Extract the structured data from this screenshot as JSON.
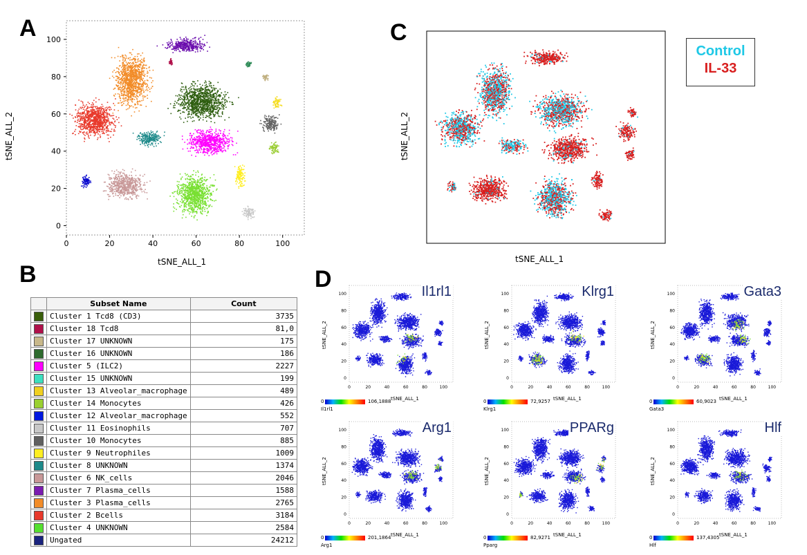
{
  "panels": {
    "a": "A",
    "b": "B",
    "c": "C",
    "d": "D"
  },
  "colors": {
    "control": "#1ec8e6",
    "il33": "#d81e1e"
  },
  "chart_data": [
    {
      "type": "scatter",
      "panel": "A",
      "xlabel": "tSNE_ALL_1",
      "ylabel": "tSNE_ALL_2",
      "xlim": [
        0,
        110
      ],
      "ylim": [
        -5,
        110
      ],
      "xticks": [
        "0",
        "20",
        "40",
        "60",
        "80",
        "100"
      ],
      "yticks": [
        "0",
        "20",
        "40",
        "60",
        "80",
        "100"
      ],
      "clusters": [
        {
          "color": "#6a0dad",
          "cx": 55,
          "cy": 97,
          "rx": 12,
          "ry": 5
        },
        {
          "color": "#f28c28",
          "cx": 30,
          "cy": 78,
          "rx": 10,
          "ry": 18
        },
        {
          "color": "#e8392b",
          "cx": 13,
          "cy": 57,
          "rx": 12,
          "ry": 12
        },
        {
          "color": "#2e5e10",
          "cx": 62,
          "cy": 67,
          "rx": 15,
          "ry": 12
        },
        {
          "color": "#ff00ff",
          "cx": 66,
          "cy": 45,
          "rx": 13,
          "ry": 9
        },
        {
          "color": "#1e8a8a",
          "cx": 38,
          "cy": 47,
          "rx": 8,
          "ry": 5
        },
        {
          "color": "#c89898",
          "cx": 27,
          "cy": 22,
          "rx": 11,
          "ry": 9
        },
        {
          "color": "#79e032",
          "cx": 59,
          "cy": 17,
          "rx": 11,
          "ry": 14
        },
        {
          "color": "#0000cc",
          "cx": 9,
          "cy": 24,
          "rx": 3,
          "ry": 4
        },
        {
          "color": "#ffee22",
          "cx": 80,
          "cy": 27,
          "rx": 3,
          "ry": 7
        },
        {
          "color": "#c8c8c8",
          "cx": 84,
          "cy": 7,
          "rx": 4,
          "ry": 4
        },
        {
          "color": "#606060",
          "cx": 94,
          "cy": 55,
          "rx": 5,
          "ry": 6
        },
        {
          "color": "#9acd32",
          "cx": 96,
          "cy": 42,
          "rx": 3,
          "ry": 4
        },
        {
          "color": "#f5dd22",
          "cx": 97,
          "cy": 66,
          "rx": 3,
          "ry": 4
        },
        {
          "color": "#2e8b57",
          "cx": 84,
          "cy": 87,
          "rx": 2,
          "ry": 2
        },
        {
          "color": "#c0b080",
          "cx": 92,
          "cy": 80,
          "rx": 2,
          "ry": 2
        },
        {
          "color": "#b0104a",
          "cx": 48,
          "cy": 88,
          "rx": 1,
          "ry": 2
        }
      ]
    },
    {
      "type": "scatter",
      "panel": "C",
      "xlabel": "tSNE_ALL_1",
      "ylabel": "tSNE_ALL_2",
      "series": [
        {
          "name": "Control",
          "color": "#1ec8e6"
        },
        {
          "name": "IL-33",
          "color": "#d81e1e"
        }
      ]
    }
  ],
  "table": {
    "headers": [
      "Subset Name",
      "Count"
    ],
    "rows": [
      {
        "color": "#3a5f0b",
        "name": "Cluster 1 Tcd8 (CD3)",
        "count": "3735"
      },
      {
        "color": "#b0104a",
        "name": "Cluster 18 Tcd8",
        "count": "81,0"
      },
      {
        "color": "#c8b88a",
        "name": "Cluster 17 UNKNOWN",
        "count": "175"
      },
      {
        "color": "#2e6b2e",
        "name": "Cluster 16 UNKNOWN",
        "count": "186"
      },
      {
        "color": "#ff00ff",
        "name": "Cluster 5        (ILC2)",
        "count": "2227"
      },
      {
        "color": "#3ce0c0",
        "name": "Cluster 15 UNKNOWN",
        "count": "199"
      },
      {
        "color": "#f0d020",
        "name": "Cluster 13 Alveolar_macrophage",
        "count": "489"
      },
      {
        "color": "#9ad030",
        "name": "Cluster 14 Monocytes",
        "count": "426"
      },
      {
        "color": "#0018e0",
        "name": "Cluster 12 Alveolar_macrophage",
        "count": "552"
      },
      {
        "color": "#c8c8c8",
        "name": "Cluster 11 Eosinophils",
        "count": "707"
      },
      {
        "color": "#606060",
        "name": "Cluster 10 Monocytes",
        "count": "885"
      },
      {
        "color": "#ffee22",
        "name": "Cluster 9 Neutrophiles",
        "count": "1009"
      },
      {
        "color": "#1e8a8a",
        "name": "Cluster 8 UNKNOWN",
        "count": "1374"
      },
      {
        "color": "#c89898",
        "name": "Cluster 6 NK_cells",
        "count": "2046"
      },
      {
        "color": "#7a1cb0",
        "name": "Cluster 7 Plasma_cells",
        "count": "1588"
      },
      {
        "color": "#f28c28",
        "name": "Cluster 3 Plasma_cells",
        "count": "2765"
      },
      {
        "color": "#e8392b",
        "name": "Cluster 2 Bcells",
        "count": "3184"
      },
      {
        "color": "#55e030",
        "name": "Cluster 4 UNKNOWN",
        "count": "2584"
      },
      {
        "color": "#1a237e",
        "name": "Ungated",
        "count": "24212"
      }
    ]
  },
  "legend_c": {
    "control": "Control",
    "il33": "IL-33"
  },
  "mini": [
    {
      "gene": "Il1rl1",
      "max": "106,1888",
      "code": "Il1rl1",
      "hot": [
        [
          65,
          50
        ],
        [
          52,
          25
        ],
        [
          55,
          28
        ]
      ]
    },
    {
      "gene": "Klrg1",
      "max": "72,9257",
      "code": "Klrg1",
      "hot": [
        [
          68,
          50
        ],
        [
          27,
          22
        ]
      ]
    },
    {
      "gene": "Gata3",
      "max": "60,9023",
      "code": "Gata3",
      "hot": [
        [
          70,
          48
        ],
        [
          63,
          62
        ],
        [
          28,
          25
        ]
      ]
    },
    {
      "gene": "Arg1",
      "max": "201,1864",
      "code": "Arg1",
      "hot": [
        [
          65,
          48
        ],
        [
          98,
          58
        ]
      ]
    },
    {
      "gene": "PPARg",
      "max": "82,9271",
      "code": "Pparg",
      "hot": [
        [
          70,
          42
        ],
        [
          96,
          60
        ],
        [
          10,
          22
        ]
      ]
    },
    {
      "gene": "Hlf",
      "max": "137,4305",
      "code": "Hlf",
      "hot": [
        [
          66,
          48
        ]
      ]
    }
  ],
  "mini_axis": {
    "xlabel": "tSNE_ALL_1",
    "ylabel": "tSNE_ALL_2",
    "zero": "0",
    "xticks": [
      "0",
      "20",
      "40",
      "60",
      "80",
      "100"
    ],
    "yticks": [
      "0",
      "20",
      "40",
      "60",
      "80",
      "100"
    ]
  }
}
